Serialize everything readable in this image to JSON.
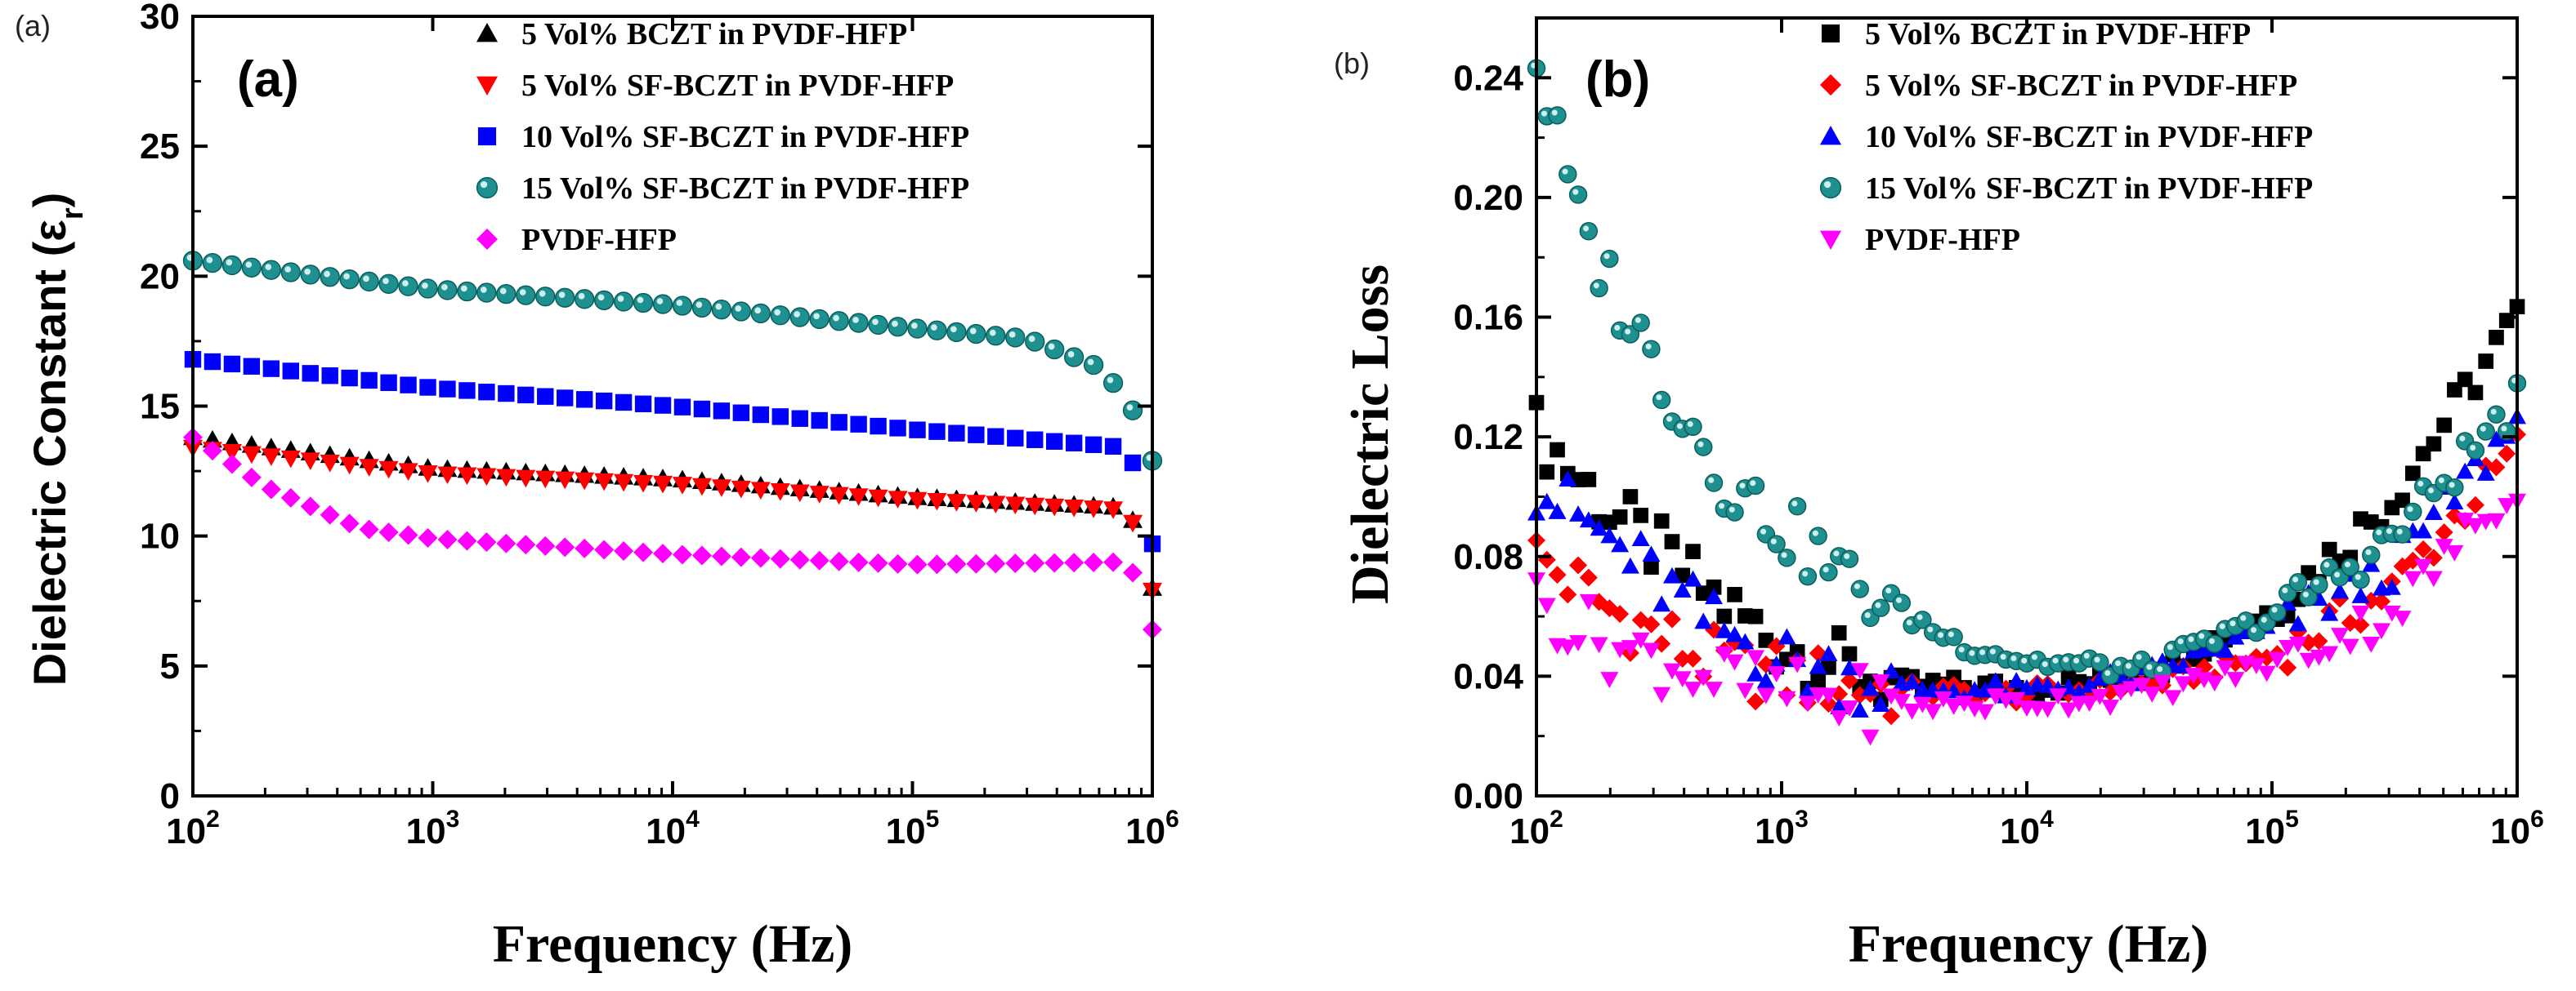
{
  "chart_data": [
    {
      "type": "scatter",
      "corner_label": "(a)",
      "panel_label": "(a)",
      "xlabel": "Frequency (Hz)",
      "ylabel": "Dielectric Constant (ε",
      "ylabel_sub": "r",
      "ylabel_close": ")",
      "xscale": "log",
      "xlim": [
        100,
        1000000
      ],
      "ylim": [
        0,
        30
      ],
      "x_ticks": [
        {
          "base": "10",
          "exp": "2",
          "value": 100
        },
        {
          "base": "10",
          "exp": "3",
          "value": 1000
        },
        {
          "base": "10",
          "exp": "4",
          "value": 10000
        },
        {
          "base": "10",
          "exp": "5",
          "value": 100000
        },
        {
          "base": "10",
          "exp": "6",
          "value": 1000000
        }
      ],
      "y_ticks": [
        {
          "label": "0",
          "value": 0
        },
        {
          "label": "5",
          "value": 5
        },
        {
          "label": "10",
          "value": 10
        },
        {
          "label": "15",
          "value": 15
        },
        {
          "label": "20",
          "value": 20
        },
        {
          "label": "25",
          "value": 25
        },
        {
          "label": "30",
          "value": 30
        }
      ],
      "legend_position": "top-right",
      "series": [
        {
          "name": "5 Vol% BCZT in PVDF-HFP",
          "marker": "triangle-up",
          "color": "#000000",
          "anchors": [
            [
              100,
              13.8
            ],
            [
              1000,
              12.6
            ],
            [
              10000,
              12.2
            ],
            [
              100000,
              11.5
            ],
            [
              800000,
              11.1
            ],
            [
              1000000,
              8.0
            ]
          ]
        },
        {
          "name": "5 Vol% SF-BCZT in PVDF-HFP",
          "marker": "triangle-down",
          "color": "#ff0000",
          "anchors": [
            [
              100,
              13.4
            ],
            [
              1000,
              12.4
            ],
            [
              10000,
              12.0
            ],
            [
              100000,
              11.4
            ],
            [
              800000,
              11.0
            ],
            [
              1000000,
              7.9
            ]
          ]
        },
        {
          "name": "10 Vol% SF-BCZT in PVDF-HFP",
          "marker": "square",
          "color": "#0000ff",
          "anchors": [
            [
              100,
              16.8
            ],
            [
              1000,
              15.7
            ],
            [
              10000,
              15.0
            ],
            [
              100000,
              14.1
            ],
            [
              800000,
              13.4
            ],
            [
              1000000,
              9.7
            ]
          ]
        },
        {
          "name": "15 Vol% SF-BCZT in PVDF-HFP",
          "marker": "circle",
          "color": "#1e9090",
          "anchors": [
            [
              100,
              20.6
            ],
            [
              1000,
              19.5
            ],
            [
              10000,
              18.9
            ],
            [
              100000,
              18.0
            ],
            [
              300000,
              17.6
            ],
            [
              600000,
              16.5
            ],
            [
              800000,
              15.2
            ],
            [
              1000000,
              12.9
            ]
          ]
        },
        {
          "name": "PVDF-HFP",
          "marker": "diamond",
          "color": "#ff00ff",
          "anchors": [
            [
              100,
              13.8
            ],
            [
              200,
              11.9
            ],
            [
              500,
              10.3
            ],
            [
              1000,
              9.9
            ],
            [
              10000,
              9.3
            ],
            [
              100000,
              8.9
            ],
            [
              800000,
              9.0
            ],
            [
              1000000,
              6.4
            ]
          ]
        }
      ]
    },
    {
      "type": "scatter",
      "corner_label": "(b)",
      "panel_label": "(b)",
      "xlabel": "Frequency (Hz)",
      "ylabel": "Dielectric Loss",
      "xscale": "log",
      "xlim": [
        100,
        1000000
      ],
      "ylim": [
        0,
        0.26
      ],
      "x_ticks": [
        {
          "base": "10",
          "exp": "2",
          "value": 100
        },
        {
          "base": "10",
          "exp": "3",
          "value": 1000
        },
        {
          "base": "10",
          "exp": "4",
          "value": 10000
        },
        {
          "base": "10",
          "exp": "5",
          "value": 100000
        },
        {
          "base": "10",
          "exp": "6",
          "value": 1000000
        }
      ],
      "y_ticks": [
        {
          "label": "0.00",
          "value": 0
        },
        {
          "label": "0.04",
          "value": 0.04
        },
        {
          "label": "0.08",
          "value": 0.08
        },
        {
          "label": "0.12",
          "value": 0.12
        },
        {
          "label": "0.16",
          "value": 0.16
        },
        {
          "label": "0.20",
          "value": 0.2
        },
        {
          "label": "0.24",
          "value": 0.24
        }
      ],
      "legend_position": "top-right",
      "series": [
        {
          "name": "5 Vol% BCZT in PVDF-HFP",
          "marker": "square",
          "color": "#000000",
          "anchors": [
            [
              100,
              0.122
            ],
            [
              200,
              0.095
            ],
            [
              500,
              0.068
            ],
            [
              1000,
              0.05
            ],
            [
              3000,
              0.037
            ],
            [
              10000,
              0.036
            ],
            [
              30000,
              0.04
            ],
            [
              100000,
              0.062
            ],
            [
              300000,
              0.098
            ],
            [
              1000000,
              0.16
            ]
          ]
        },
        {
          "name": "5 Vol% SF-BCZT in PVDF-HFP",
          "marker": "diamond",
          "color": "#ff0000",
          "anchors": [
            [
              100,
              0.08
            ],
            [
              200,
              0.062
            ],
            [
              500,
              0.045
            ],
            [
              1000,
              0.04
            ],
            [
              3000,
              0.035
            ],
            [
              10000,
              0.034
            ],
            [
              30000,
              0.037
            ],
            [
              100000,
              0.047
            ],
            [
              300000,
              0.068
            ],
            [
              1000000,
              0.116
            ]
          ]
        },
        {
          "name": "10 Vol% SF-BCZT in PVDF-HFP",
          "marker": "triangle-up",
          "color": "#0000ff",
          "anchors": [
            [
              100,
              0.104
            ],
            [
              200,
              0.085
            ],
            [
              500,
              0.058
            ],
            [
              1000,
              0.045
            ],
            [
              3000,
              0.036
            ],
            [
              10000,
              0.035
            ],
            [
              30000,
              0.04
            ],
            [
              100000,
              0.056
            ],
            [
              300000,
              0.075
            ],
            [
              1000000,
              0.125
            ]
          ]
        },
        {
          "name": "15 Vol% SF-BCZT in PVDF-HFP",
          "marker": "circle",
          "color": "#1e9090",
          "anchors": [
            [
              100,
              0.245
            ],
            [
              150,
              0.19
            ],
            [
              300,
              0.145
            ],
            [
              600,
              0.105
            ],
            [
              1000,
              0.09
            ],
            [
              2000,
              0.07
            ],
            [
              5000,
              0.052
            ],
            [
              10000,
              0.045
            ],
            [
              30000,
              0.042
            ],
            [
              100000,
              0.06
            ],
            [
              300000,
              0.085
            ],
            [
              1000000,
              0.132
            ]
          ]
        },
        {
          "name": "PVDF-HFP",
          "marker": "triangle-down",
          "color": "#ff00ff",
          "anchors": [
            [
              100,
              0.065
            ],
            [
              200,
              0.05
            ],
            [
              500,
              0.04
            ],
            [
              1000,
              0.034
            ],
            [
              3000,
              0.03
            ],
            [
              10000,
              0.031
            ],
            [
              30000,
              0.034
            ],
            [
              100000,
              0.044
            ],
            [
              300000,
              0.06
            ],
            [
              1000000,
              0.105
            ]
          ]
        }
      ]
    }
  ]
}
